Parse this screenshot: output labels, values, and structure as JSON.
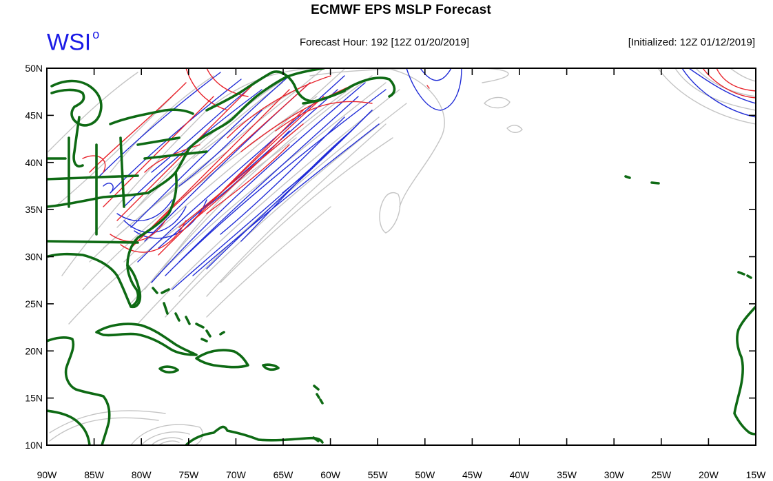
{
  "title": "ECMWF EPS MSLP Forecast",
  "logo": {
    "text": "WSI",
    "superscript": "o",
    "color": "#1a1ae6"
  },
  "forecast_hour_label": "Forecast Hour: 192 [12Z 01/20/2019]",
  "initialized_label": "[Initialized: 12Z 01/12/2019]",
  "map": {
    "lon_range": [
      -90,
      -15
    ],
    "lat_range": [
      10,
      50
    ],
    "lon_ticks": [
      "90W",
      "85W",
      "80W",
      "75W",
      "70W",
      "65W",
      "60W",
      "55W",
      "50W",
      "45W",
      "40W",
      "35W",
      "30W",
      "25W",
      "20W",
      "15W"
    ],
    "lat_ticks": [
      "50N",
      "45N",
      "40N",
      "35N",
      "30N",
      "25N",
      "20N",
      "15N",
      "10N"
    ],
    "colors": {
      "coast": "#0e6a14",
      "member_red": "#e8232b",
      "member_blue": "#1f2bd6",
      "member_gray": "#c4c4c4",
      "frame": "#000000"
    }
  }
}
